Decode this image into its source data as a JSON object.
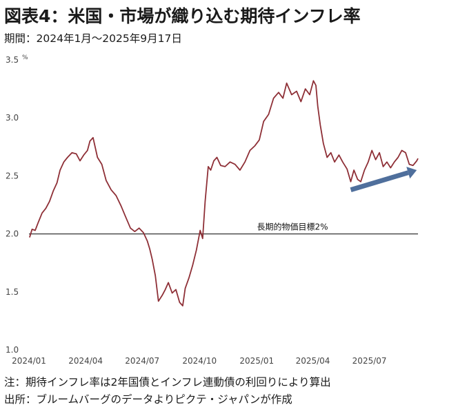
{
  "title": "図表4：米国・市場が織り込む期待インフレ率",
  "period": "期間：2024年1月～2025年9月17日",
  "notes": {
    "note1": "注：期待インフレ率は2年国債とインフレ連動債の利回りにより算出",
    "note2": "出所：ブルームバーグのデータよりピクテ・ジャパンが作成"
  },
  "colors": {
    "line": "#8e2f36",
    "reference": "#333333",
    "arrow": "#4f6f9c"
  },
  "chart_data": {
    "type": "line",
    "title": "図表4：米国・市場が織り込む期待インフレ率",
    "ylabel": "",
    "yunit": "%",
    "ylim": [
      1.0,
      3.5
    ],
    "yticks": [
      "1.0",
      "1.5",
      "2.0",
      "2.5",
      "3.0",
      "3.5"
    ],
    "xticks": [
      "2024/01",
      "2024/04",
      "2024/07",
      "2024/10",
      "2025/01",
      "2025/04",
      "2025/07"
    ],
    "xlim": [
      "2024-01-01",
      "2025-09-17"
    ],
    "grid": false,
    "reference_line": {
      "value": 2.0,
      "label": "長期的物価目標2%"
    },
    "annotation_arrow": {
      "from": [
        "2025-06-01",
        2.38
      ],
      "to": [
        "2025-09-15",
        2.55
      ]
    },
    "series": [
      {
        "x": [
          "2024-01-02",
          "2024-01-06",
          "2024-01-11",
          "2024-01-16",
          "2024-01-22",
          "2024-01-28",
          "2024-02-03",
          "2024-02-09",
          "2024-02-15",
          "2024-02-20",
          "2024-02-26",
          "2024-03-03",
          "2024-03-10",
          "2024-03-17",
          "2024-03-23",
          "2024-03-29",
          "2024-04-04",
          "2024-04-08",
          "2024-04-13",
          "2024-04-20",
          "2024-04-27",
          "2024-05-04",
          "2024-05-12",
          "2024-05-20",
          "2024-05-28",
          "2024-06-04",
          "2024-06-12",
          "2024-06-19",
          "2024-06-26",
          "2024-07-03",
          "2024-07-09",
          "2024-07-13",
          "2024-07-17",
          "2024-07-22",
          "2024-07-27",
          "2024-08-02",
          "2024-08-07",
          "2024-08-12",
          "2024-08-18",
          "2024-08-24",
          "2024-08-30",
          "2024-09-04",
          "2024-09-08",
          "2024-09-14",
          "2024-09-20",
          "2024-09-26",
          "2024-10-02",
          "2024-10-06",
          "2024-10-10",
          "2024-10-15",
          "2024-10-19",
          "2024-10-24",
          "2024-10-29",
          "2024-11-04",
          "2024-11-11",
          "2024-11-19",
          "2024-11-27",
          "2024-12-05",
          "2024-12-13",
          "2024-12-21",
          "2024-12-29",
          "2025-01-05",
          "2025-01-12",
          "2025-01-20",
          "2025-01-28",
          "2025-02-05",
          "2025-02-12",
          "2025-02-18",
          "2025-02-26",
          "2025-03-06",
          "2025-03-13",
          "2025-03-20",
          "2025-03-27",
          "2025-04-02",
          "2025-04-06",
          "2025-04-09",
          "2025-04-13",
          "2025-04-18",
          "2025-04-24",
          "2025-04-30",
          "2025-05-06",
          "2025-05-13",
          "2025-05-19",
          "2025-05-26",
          "2025-06-01",
          "2025-06-06",
          "2025-06-12",
          "2025-06-17",
          "2025-06-23",
          "2025-06-29",
          "2025-07-05",
          "2025-07-11",
          "2025-07-17",
          "2025-07-23",
          "2025-07-29",
          "2025-08-04",
          "2025-08-10",
          "2025-08-16",
          "2025-08-22",
          "2025-08-28",
          "2025-09-03",
          "2025-09-09",
          "2025-09-15",
          "2025-09-17"
        ],
        "values": [
          1.97,
          2.04,
          2.03,
          2.1,
          2.18,
          2.22,
          2.28,
          2.37,
          2.44,
          2.55,
          2.62,
          2.66,
          2.7,
          2.69,
          2.63,
          2.68,
          2.72,
          2.8,
          2.83,
          2.66,
          2.6,
          2.46,
          2.38,
          2.33,
          2.24,
          2.15,
          2.05,
          2.02,
          2.05,
          2.01,
          1.94,
          1.87,
          1.78,
          1.64,
          1.42,
          1.47,
          1.52,
          1.58,
          1.49,
          1.52,
          1.41,
          1.38,
          1.53,
          1.62,
          1.73,
          1.86,
          2.03,
          1.96,
          2.28,
          2.58,
          2.55,
          2.63,
          2.66,
          2.59,
          2.58,
          2.62,
          2.6,
          2.55,
          2.62,
          2.72,
          2.76,
          2.81,
          2.97,
          3.03,
          3.17,
          3.22,
          3.17,
          3.3,
          3.2,
          3.23,
          3.14,
          3.25,
          3.2,
          3.32,
          3.28,
          3.1,
          2.94,
          2.78,
          2.66,
          2.7,
          2.62,
          2.68,
          2.62,
          2.56,
          2.45,
          2.55,
          2.47,
          2.45,
          2.55,
          2.62,
          2.72,
          2.64,
          2.7,
          2.58,
          2.62,
          2.57,
          2.62,
          2.66,
          2.72,
          2.7,
          2.6,
          2.59,
          2.63,
          2.65
        ]
      }
    ]
  }
}
